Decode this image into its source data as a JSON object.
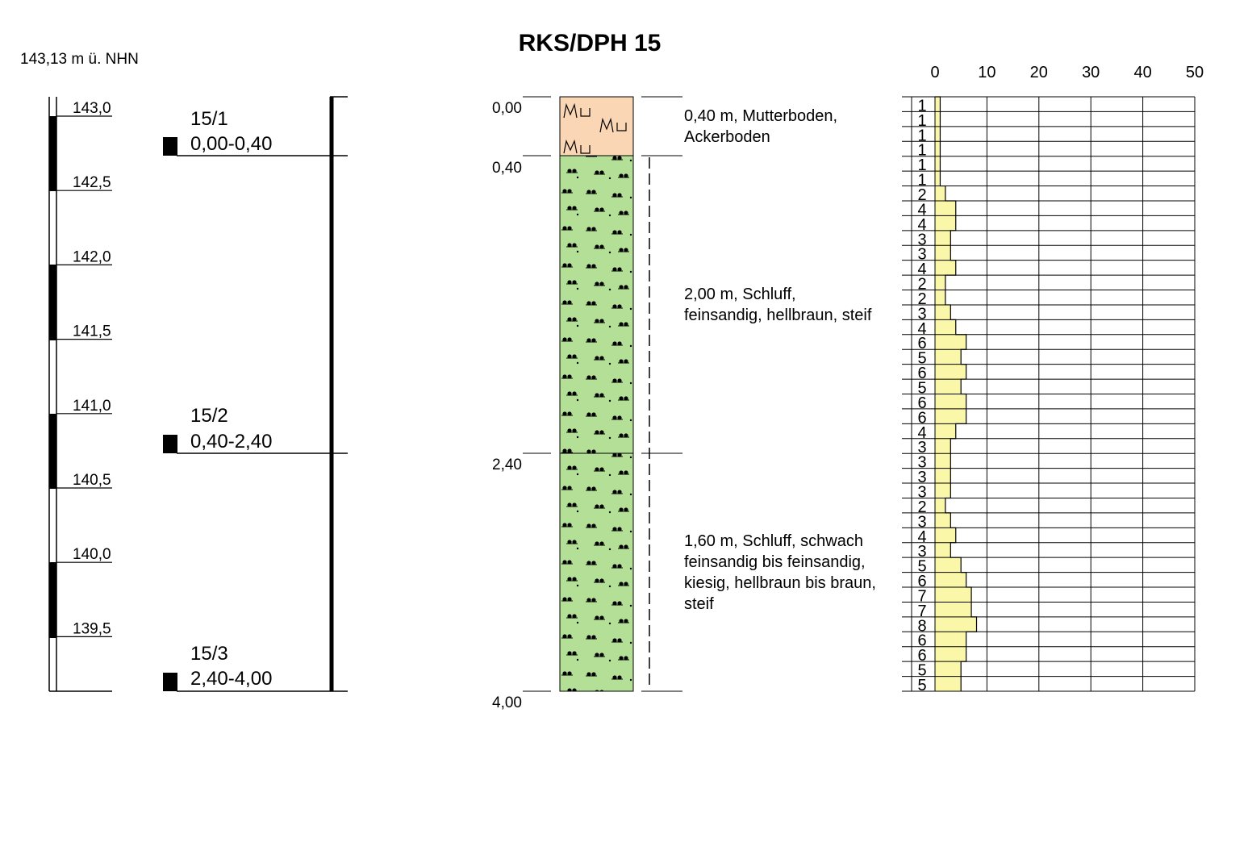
{
  "title": "RKS/DPH 15",
  "elevation_label": "143,13 m ü. NHN",
  "elevation_scale": {
    "ticks": [
      "143,0",
      "142,5",
      "142,0",
      "141,5",
      "141,0",
      "140,5",
      "140,0",
      "139,5"
    ]
  },
  "samples": [
    {
      "id": "15/1",
      "range": "0,00-0,40"
    },
    {
      "id": "15/2",
      "range": "0,40-2,40"
    },
    {
      "id": "15/3",
      "range": "2,40-4,00"
    }
  ],
  "depth_labels": [
    "0,00",
    "0,40",
    "2,40",
    "4,00"
  ],
  "layers": [
    {
      "from_m": 0.0,
      "to_m": 0.4,
      "symbol": "Mu",
      "color": "#fad6b4",
      "lines": [
        "0,40 m, Mutterboden,",
        "Ackerboden"
      ]
    },
    {
      "from_m": 0.4,
      "to_m": 2.4,
      "symbol": "silt",
      "color": "#b3e096",
      "lines": [
        "2,00 m, Schluff,",
        "feinsandig, hellbraun, steif"
      ]
    },
    {
      "from_m": 2.4,
      "to_m": 4.0,
      "symbol": "silt",
      "color": "#b3e096",
      "lines": [
        "1,60 m, Schluff, schwach",
        "feinsandig bis feinsandig,",
        "kiesig, hellbraun bis braun,",
        "steif"
      ]
    }
  ],
  "chart_data": {
    "type": "bar",
    "title": "",
    "x_axis_ticks": [
      "0",
      "10",
      "20",
      "30",
      "40",
      "50"
    ],
    "xlim": [
      0,
      50
    ],
    "ylim_depth_m": [
      0,
      4.0
    ],
    "bar_fill": "#fbf7a8",
    "depth_step_m": 0.1,
    "values": [
      1,
      1,
      1,
      1,
      1,
      1,
      2,
      4,
      4,
      3,
      3,
      4,
      2,
      2,
      3,
      4,
      6,
      5,
      6,
      5,
      6,
      6,
      4,
      3,
      3,
      3,
      3,
      2,
      3,
      4,
      3,
      5,
      6,
      7,
      7,
      8,
      6,
      6,
      5,
      5
    ]
  }
}
